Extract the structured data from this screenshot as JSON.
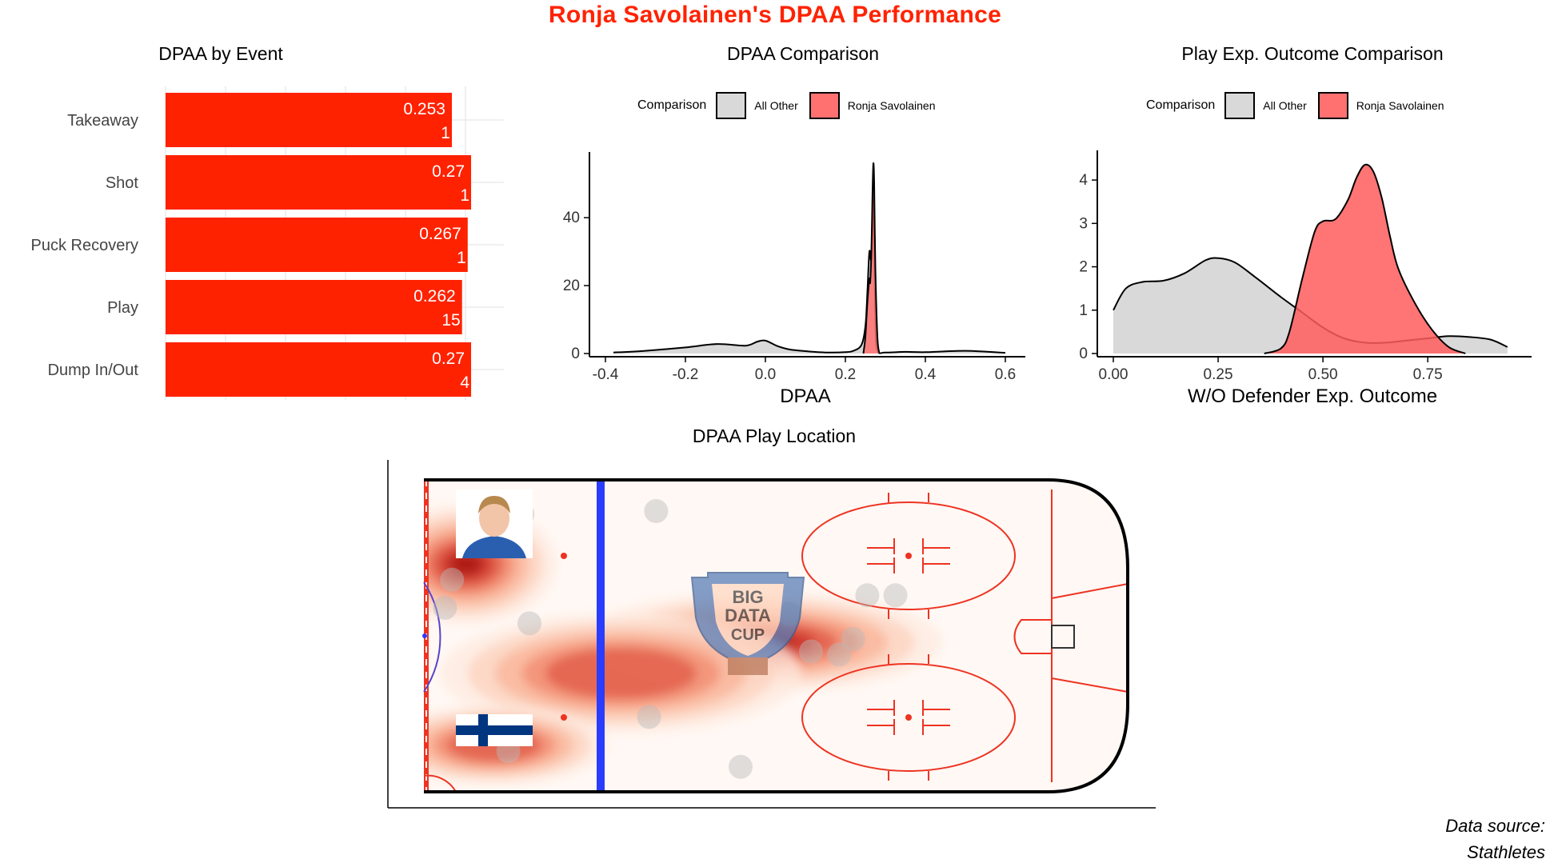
{
  "title": "Ronja Savolainen's DPAA Performance",
  "source_note": {
    "line1": "Data source:",
    "line2": "Stathletes"
  },
  "colors": {
    "accent": "#ff2200",
    "other_fill": "#d9d9d9",
    "player_fill": "#ff7070",
    "blue_line": "#2a3cff",
    "red_line": "#ee3322"
  },
  "images": {
    "player_photo_icon": "player-headshot",
    "flag_icon": "finland-flag",
    "logo_icon": "big-data-cup-logo"
  },
  "logo_text": {
    "line1": "BIG",
    "line2": "DATA",
    "line3": "CUP"
  },
  "chart_data": [
    {
      "type": "bar",
      "orientation": "horizontal",
      "title": "DPAA by Event",
      "categories": [
        "Takeaway",
        "Shot",
        "Puck Recovery",
        "Play",
        "Dump In/Out"
      ],
      "values": [
        0.253,
        0.27,
        0.267,
        0.262,
        0.27
      ],
      "value_labels": [
        "0.253",
        "0.27",
        "0.267",
        "0.262",
        "0.27"
      ],
      "counts": [
        1,
        1,
        1,
        15,
        4
      ],
      "xlim": [
        0,
        0.28
      ],
      "grid": true,
      "color": "#ff2200"
    },
    {
      "type": "area",
      "title": "DPAA Comparison",
      "xlabel": "DPAA",
      "legend": {
        "title": "Comparison",
        "position": "top",
        "entries": [
          "All Other",
          "Ronja Savolainen"
        ]
      },
      "xlim": [
        -0.4,
        0.6
      ],
      "ylim": [
        0,
        57
      ],
      "x_ticks": [
        "-0.4",
        "-0.2",
        "0.0",
        "0.2",
        "0.4",
        "0.6"
      ],
      "y_ticks": [
        "0",
        "20",
        "40"
      ],
      "series": [
        {
          "name": "All Other",
          "x": [
            -0.38,
            -0.3,
            -0.2,
            -0.12,
            -0.05,
            -0.02,
            0.0,
            0.03,
            0.06,
            0.1,
            0.15,
            0.2,
            0.22,
            0.24,
            0.25,
            0.255,
            0.26,
            0.265,
            0.27,
            0.275,
            0.28,
            0.3,
            0.35,
            0.4,
            0.5,
            0.6
          ],
          "y": [
            0.3,
            0.8,
            1.8,
            2.8,
            2.3,
            3.5,
            3.8,
            2.2,
            1.2,
            0.7,
            0.3,
            0.4,
            0.8,
            2.5,
            8.0,
            18.0,
            30.0,
            28.0,
            45.0,
            10.0,
            1.0,
            0.3,
            0.5,
            0.4,
            0.8,
            0.2
          ]
        },
        {
          "name": "Ronja Savolainen",
          "x": [
            0.245,
            0.25,
            0.255,
            0.26,
            0.262,
            0.265,
            0.268,
            0.27,
            0.272,
            0.275,
            0.28,
            0.285
          ],
          "y": [
            0,
            5,
            15,
            22,
            21,
            30,
            48,
            56,
            50,
            25,
            5,
            0
          ]
        }
      ]
    },
    {
      "type": "area",
      "title": "Play Exp. Outcome Comparison",
      "xlabel": "W/O Defender Exp. Outcome",
      "legend": {
        "title": "Comparison",
        "position": "top",
        "entries": [
          "All Other",
          "Ronja Savolainen"
        ]
      },
      "xlim": [
        0.0,
        0.95
      ],
      "ylim": [
        0,
        4.5
      ],
      "x_ticks": [
        "0.00",
        "0.25",
        "0.50",
        "0.75"
      ],
      "y_ticks": [
        "0",
        "1",
        "2",
        "3",
        "4"
      ],
      "series": [
        {
          "name": "All Other",
          "x": [
            0.0,
            0.03,
            0.07,
            0.12,
            0.17,
            0.22,
            0.25,
            0.29,
            0.34,
            0.4,
            0.45,
            0.5,
            0.55,
            0.6,
            0.65,
            0.7,
            0.75,
            0.8,
            0.85,
            0.9,
            0.94
          ],
          "y": [
            1.0,
            1.5,
            1.65,
            1.68,
            1.85,
            2.15,
            2.2,
            2.1,
            1.75,
            1.3,
            0.95,
            0.6,
            0.35,
            0.25,
            0.25,
            0.3,
            0.35,
            0.4,
            0.38,
            0.32,
            0.15
          ]
        },
        {
          "name": "Ronja Savolainen",
          "x": [
            0.36,
            0.4,
            0.42,
            0.45,
            0.48,
            0.5,
            0.53,
            0.56,
            0.58,
            0.6,
            0.62,
            0.64,
            0.66,
            0.68,
            0.72,
            0.76,
            0.8,
            0.84
          ],
          "y": [
            0.0,
            0.12,
            0.5,
            1.7,
            2.8,
            3.05,
            3.1,
            3.55,
            4.05,
            4.35,
            4.2,
            3.6,
            2.7,
            1.95,
            1.15,
            0.55,
            0.15,
            0.0
          ]
        }
      ]
    },
    {
      "type": "heatmap",
      "title": "DPAA Play Location",
      "description_of_marks": "density of play locations on offensive half of rink",
      "hotspots": [
        {
          "x": 0.06,
          "y": 0.27,
          "weight": 0.9,
          "sx": 0.08,
          "sy": 0.12
        },
        {
          "x": 0.48,
          "y": 0.52,
          "weight": 1.0,
          "sx": 0.16,
          "sy": 0.1
        },
        {
          "x": 0.28,
          "y": 0.62,
          "weight": 0.6,
          "sx": 0.16,
          "sy": 0.12
        },
        {
          "x": 0.1,
          "y": 0.85,
          "weight": 0.55,
          "sx": 0.1,
          "sy": 0.08
        }
      ],
      "points": [
        {
          "x": 0.14,
          "y": 0.11
        },
        {
          "x": 0.33,
          "y": 0.1
        },
        {
          "x": 0.15,
          "y": 0.46
        },
        {
          "x": 0.04,
          "y": 0.32
        },
        {
          "x": 0.07,
          "y": 0.79
        },
        {
          "x": 0.12,
          "y": 0.87
        },
        {
          "x": 0.32,
          "y": 0.76
        },
        {
          "x": 0.45,
          "y": 0.92
        },
        {
          "x": 0.63,
          "y": 0.37
        },
        {
          "x": 0.67,
          "y": 0.37
        },
        {
          "x": 0.61,
          "y": 0.51
        },
        {
          "x": 0.59,
          "y": 0.56
        },
        {
          "x": 0.55,
          "y": 0.55
        },
        {
          "x": 0.52,
          "y": 0.43
        },
        {
          "x": 0.03,
          "y": 0.41
        }
      ]
    }
  ]
}
